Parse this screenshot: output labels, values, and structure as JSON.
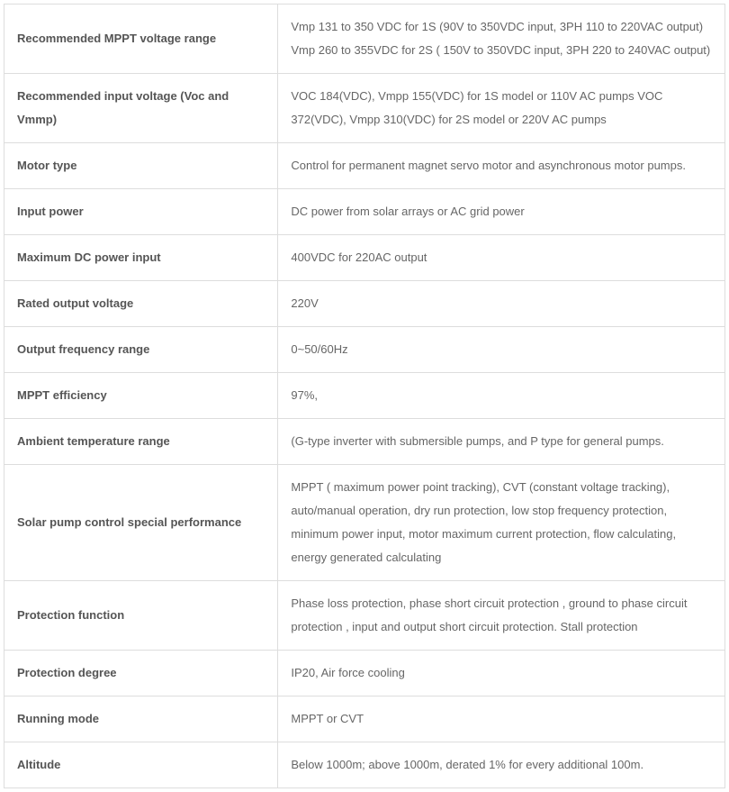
{
  "table": {
    "rows": [
      {
        "label": "Recommended MPPT voltage range",
        "value": "Vmp 131 to 350 VDC for 1S (90V to 350VDC input, 3PH 110 to 220VAC output) Vmp 260 to 355VDC for 2S ( 150V to 350VDC input, 3PH 220 to 240VAC output)"
      },
      {
        "label": "Recommended input voltage (Voc and Vmmp)",
        "value": "VOC 184(VDC), Vmpp 155(VDC) for 1S model or 110V AC pumps VOC 372(VDC), Vmpp 310(VDC) for 2S model or 220V AC pumps"
      },
      {
        "label": "Motor type",
        "value": "Control for permanent magnet servo motor and asynchronous motor pumps."
      },
      {
        "label": "Input power",
        "value": "DC power from solar arrays or AC grid power"
      },
      {
        "label": "Maximum DC power input",
        "value": "400VDC for 220AC output"
      },
      {
        "label": "Rated output voltage",
        "value": "220V"
      },
      {
        "label": "Output frequency range",
        "value": "0~50/60Hz"
      },
      {
        "label": "MPPT efficiency",
        "value": "97%,"
      },
      {
        "label": "Ambient temperature range",
        "value": "(G-type inverter with submersible pumps, and P type for general pumps."
      },
      {
        "label": "Solar pump control special performance",
        "value": "MPPT ( maximum power point tracking), CVT (constant voltage tracking), auto/manual operation, dry run protection, low stop frequency protection, minimum power input, motor maximum current protection, flow calculating, energy generated calculating"
      },
      {
        "label": "Protection function",
        "value": "Phase loss protection, phase short circuit protection , ground to phase circuit protection , input and output short circuit protection. Stall protection"
      },
      {
        "label": "Protection degree",
        "value": "IP20, Air force cooling"
      },
      {
        "label": "Running mode",
        "value": "MPPT or CVT"
      },
      {
        "label": "Altitude",
        "value": "Below 1000m; above 1000m, derated 1% for every additional 100m."
      }
    ]
  }
}
